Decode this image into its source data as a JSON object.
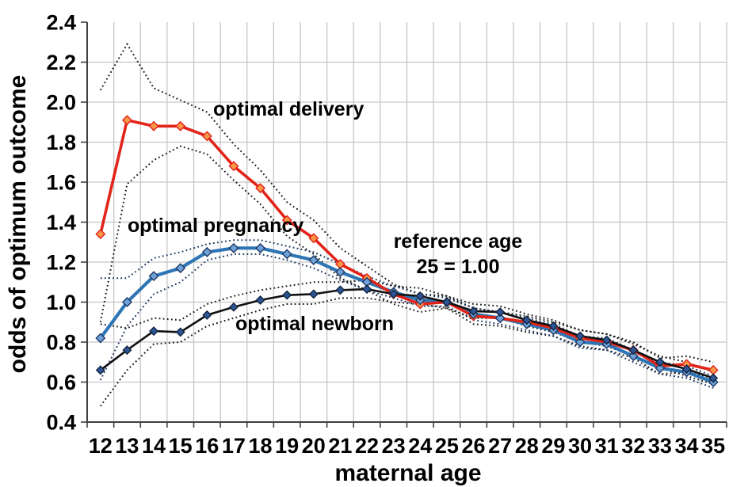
{
  "chart_data": {
    "type": "line",
    "x": [
      12,
      13,
      14,
      15,
      16,
      17,
      18,
      19,
      20,
      21,
      22,
      23,
      24,
      25,
      26,
      27,
      28,
      29,
      30,
      31,
      32,
      33,
      34,
      35
    ],
    "xlabel": "maternal age",
    "ylabel": "odds of optimum outcome",
    "ylim": [
      0.4,
      2.4
    ],
    "yticks": [
      0.4,
      0.6,
      0.8,
      1.0,
      1.2,
      1.4,
      1.6,
      1.8,
      2.0,
      2.2,
      2.4
    ],
    "grid": true,
    "legend_position": "none",
    "reference_note": "reference age 25 = 1.00",
    "annotations": {
      "delivery": "optimal delivery",
      "pregnancy": "optimal pregnancy",
      "newborn": "optimal newborn",
      "reference_1": "reference age",
      "reference_2": "25 = 1.00"
    },
    "colors": {
      "grid": "#c6c6c6",
      "axis": "#3f3f3f",
      "delivery_line": "#e2231a",
      "pregnancy_line": "#2e75b6",
      "newborn_line": "#111111",
      "delivery_ci": "#1a1a1a",
      "pregnancy_ci": "#1f3864",
      "newborn_ci": "#1a1a1a"
    },
    "series": [
      {
        "name": "optimal delivery",
        "color": "#e2231a",
        "width": 3.6,
        "marker": "diamond",
        "marker_fill": "#f79646",
        "marker_stroke": "#e2231a",
        "marker_size": 5.5,
        "ci_color": "#1a1a1a",
        "values": [
          1.34,
          1.91,
          1.88,
          1.88,
          1.83,
          1.68,
          1.57,
          1.41,
          1.32,
          1.19,
          1.12,
          1.04,
          0.99,
          1.0,
          0.93,
          0.92,
          0.9,
          0.87,
          0.82,
          0.8,
          0.76,
          0.68,
          0.69,
          0.66
        ],
        "ci_upper": [
          2.06,
          2.29,
          2.07,
          2.01,
          1.95,
          1.79,
          1.66,
          1.5,
          1.41,
          1.27,
          1.18,
          1.09,
          1.04,
          1.03,
          0.97,
          0.95,
          0.93,
          0.9,
          0.86,
          0.84,
          0.8,
          0.72,
          0.73,
          0.7
        ],
        "ci_lower": [
          0.9,
          1.59,
          1.71,
          1.78,
          1.74,
          1.61,
          1.49,
          1.33,
          1.24,
          1.12,
          1.06,
          0.99,
          0.95,
          0.97,
          0.89,
          0.88,
          0.85,
          0.83,
          0.78,
          0.76,
          0.72,
          0.64,
          0.65,
          0.62
        ]
      },
      {
        "name": "optimal pregnancy",
        "color": "#2e75b6",
        "width": 4.2,
        "marker": "diamond",
        "marker_fill": "#6ea2d8",
        "marker_stroke": "#1f3864",
        "marker_size": 5.5,
        "ci_color": "#1f3864",
        "values": [
          0.82,
          1.0,
          1.13,
          1.17,
          1.25,
          1.27,
          1.27,
          1.24,
          1.21,
          1.15,
          1.1,
          1.05,
          1.01,
          1.0,
          0.94,
          0.92,
          0.89,
          0.86,
          0.8,
          0.79,
          0.73,
          0.67,
          0.65,
          0.6
        ],
        "ci_upper": [
          1.12,
          1.12,
          1.22,
          1.25,
          1.29,
          1.31,
          1.31,
          1.28,
          1.25,
          1.19,
          1.13,
          1.08,
          1.04,
          1.02,
          0.97,
          0.95,
          0.92,
          0.89,
          0.83,
          0.82,
          0.76,
          0.7,
          0.68,
          0.63
        ],
        "ci_lower": [
          0.61,
          0.88,
          1.04,
          1.1,
          1.21,
          1.24,
          1.24,
          1.21,
          1.17,
          1.11,
          1.06,
          1.02,
          0.98,
          0.98,
          0.91,
          0.89,
          0.86,
          0.83,
          0.77,
          0.76,
          0.7,
          0.64,
          0.62,
          0.57
        ]
      },
      {
        "name": "optimal newborn",
        "color": "#111111",
        "width": 2.6,
        "marker": "diamond",
        "marker_fill": "#2f5496",
        "marker_stroke": "#10243e",
        "marker_size": 5.0,
        "ci_color": "#1a1a1a",
        "values": [
          0.66,
          0.76,
          0.855,
          0.85,
          0.935,
          0.975,
          1.01,
          1.035,
          1.04,
          1.06,
          1.065,
          1.04,
          1.03,
          1.0,
          0.955,
          0.95,
          0.91,
          0.88,
          0.83,
          0.81,
          0.76,
          0.7,
          0.665,
          0.62
        ],
        "ci_upper": [
          0.89,
          0.87,
          0.92,
          0.91,
          0.99,
          1.03,
          1.06,
          1.08,
          1.1,
          1.1,
          1.11,
          1.08,
          1.07,
          1.03,
          0.99,
          0.98,
          0.94,
          0.91,
          0.86,
          0.84,
          0.79,
          0.73,
          0.7,
          0.65
        ],
        "ci_lower": [
          0.48,
          0.66,
          0.79,
          0.8,
          0.88,
          0.92,
          0.96,
          0.99,
          0.99,
          1.02,
          1.02,
          1.0,
          0.99,
          0.97,
          0.92,
          0.92,
          0.88,
          0.85,
          0.8,
          0.78,
          0.73,
          0.67,
          0.63,
          0.59
        ]
      }
    ]
  }
}
